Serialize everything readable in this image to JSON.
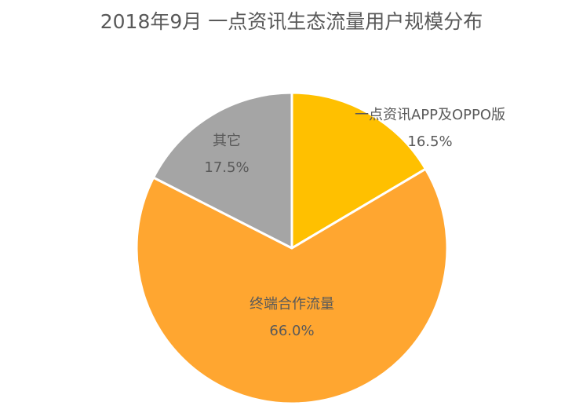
{
  "title": "2018年9月 一点资讯生态流量用户规模分布",
  "chart_data": {
    "type": "pie",
    "title": "2018年9月 一点资讯生态流量用户规模分布",
    "start_angle_deg": 0,
    "direction": "clockwise",
    "slices": [
      {
        "label": "一点资讯APP及OPPO版",
        "value": 16.5,
        "value_label": "16.5%",
        "color": "#FFC000"
      },
      {
        "label": "终端合作流量",
        "value": 66.0,
        "value_label": "66.0%",
        "color": "#FFA630"
      },
      {
        "label": "其它",
        "value": 17.5,
        "value_label": "17.5%",
        "color": "#A5A5A5"
      }
    ]
  }
}
